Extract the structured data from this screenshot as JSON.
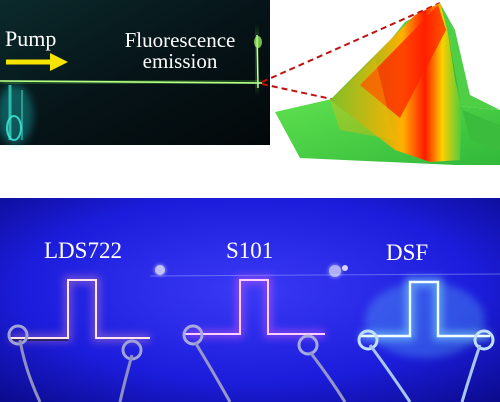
{
  "top_panel": {
    "pump_label": "Pump",
    "fluorescence_label_line1": "Fluorescence",
    "fluorescence_label_line2": "emission"
  },
  "bottom_panel": {
    "chips": [
      {
        "label": "LDS722"
      },
      {
        "label": "S101"
      },
      {
        "label": "DSF"
      }
    ]
  },
  "colors": {
    "background": "#ffffff",
    "top_image_bg": "#06131a",
    "waveguide_green": "#6cff3a",
    "arrow_yellow": "#f5e400",
    "zoom_line_red": "#c01010",
    "chip_bg_blue": "#1a1ad8",
    "lds_chip_glow": "#ffd6e0",
    "s101_chip_glow": "#ff9cff",
    "dsf_chip_glow": "#bff6ff"
  }
}
